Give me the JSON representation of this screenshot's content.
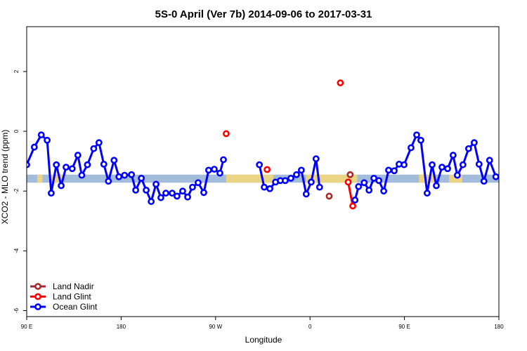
{
  "chart_data": {
    "type": "line",
    "title": "5S-0 April (Ver 7b)   2014-09-06 to 2017-03-31",
    "xlabel": "Longitude",
    "ylabel": "XCO2 - MLO trend (ppm)",
    "xlim": [
      0,
      360
    ],
    "ylim": [
      -6.2,
      3.5
    ],
    "x_tick_labels": [
      {
        "x": 0,
        "label": "90 E"
      },
      {
        "x": 72,
        "label": "180"
      },
      {
        "x": 144,
        "label": "90 W"
      },
      {
        "x": 216,
        "label": "0"
      },
      {
        "x": 288,
        "label": "90 E"
      },
      {
        "x": 360,
        "label": "180"
      }
    ],
    "y_ticks": [
      2,
      0,
      -2,
      -4,
      -6
    ],
    "band": {
      "y_low": -1.72,
      "y_high": -1.45,
      "ocean_color": "#a4bcdc",
      "land_color": "#f2d77a"
    },
    "series": [
      {
        "name": "Land Nadir",
        "color": "#a52a2a",
        "segments": [
          [
            [
              246.6,
              -1.45
            ]
          ],
          [
            [
              230.6,
              -2.17
            ]
          ]
        ]
      },
      {
        "name": "Land Glint",
        "color": "#ff0000",
        "segments": [
          [
            [
              152.1,
              -0.08
            ]
          ],
          [
            [
              183.3,
              -1.28
            ]
          ],
          [
            [
              239.1,
              1.62
            ]
          ],
          [
            [
              245.1,
              -1.7
            ],
            [
              248.6,
              -2.5
            ]
          ]
        ]
      },
      {
        "name": "Ocean Glint",
        "color": "#0000ff",
        "segments": [
          [
            [
              0,
              -1.12
            ],
            [
              5.8,
              -0.53
            ],
            [
              11.1,
              -0.12
            ],
            [
              15.6,
              -0.3
            ],
            [
              18.7,
              -2.07
            ],
            [
              22.6,
              -1.12
            ],
            [
              26.3,
              -1.82
            ],
            [
              30.0,
              -1.2
            ],
            [
              34.7,
              -1.25
            ],
            [
              39.0,
              -0.8
            ],
            [
              42.0,
              -1.47
            ],
            [
              46.3,
              -1.12
            ],
            [
              51.1,
              -0.58
            ],
            [
              55.1,
              -0.38
            ],
            [
              58.8,
              -1.1
            ],
            [
              62.3,
              -1.67
            ],
            [
              66.6,
              -0.97
            ],
            [
              70.3,
              -1.52
            ],
            [
              74.6,
              -1.47
            ],
            [
              79.9,
              -1.45
            ],
            [
              83.1,
              -1.97
            ],
            [
              87.4,
              -1.57
            ],
            [
              91.1,
              -1.97
            ],
            [
              94.9,
              -2.35
            ],
            [
              98.6,
              -1.77
            ],
            [
              102.3,
              -2.22
            ],
            [
              106.1,
              -2.07
            ],
            [
              110.9,
              -2.07
            ],
            [
              114.6,
              -2.17
            ],
            [
              118.9,
              -2.0
            ],
            [
              122.7,
              -2.2
            ],
            [
              126.4,
              -1.87
            ],
            [
              130.7,
              -1.72
            ],
            [
              135.0,
              -2.05
            ],
            [
              138.7,
              -1.3
            ],
            [
              143.0,
              -1.27
            ],
            [
              147.3,
              -1.4
            ],
            [
              150.0,
              -0.95
            ]
          ],
          [
            [
              177.4,
              -1.12
            ],
            [
              181.1,
              -1.87
            ],
            [
              185.4,
              -1.92
            ],
            [
              189.7,
              -1.7
            ],
            [
              193.4,
              -1.65
            ],
            [
              197.1,
              -1.65
            ],
            [
              201.4,
              -1.57
            ],
            [
              205.7,
              -1.45
            ],
            [
              209.4,
              -1.3
            ],
            [
              213.1,
              -2.1
            ],
            [
              216.9,
              -1.7
            ],
            [
              220.6,
              -0.92
            ],
            [
              223.3,
              -1.87
            ]
          ],
          [
            [
              250.3,
              -2.3
            ],
            [
              253.0,
              -1.85
            ],
            [
              257.3,
              -1.72
            ],
            [
              261.0,
              -1.97
            ],
            [
              264.7,
              -1.57
            ],
            [
              268.5,
              -1.65
            ],
            [
              272.2,
              -2.0
            ],
            [
              275.9,
              -1.3
            ],
            [
              280.2,
              -1.32
            ],
            [
              283.9,
              -1.1
            ],
            [
              287.7,
              -1.12
            ],
            [
              293.0,
              -0.55
            ],
            [
              297.3,
              -0.12
            ],
            [
              300.5,
              -0.3
            ],
            [
              305.3,
              -2.07
            ],
            [
              309.1,
              -1.12
            ],
            [
              312.3,
              -1.82
            ],
            [
              316.6,
              -1.2
            ],
            [
              320.9,
              -1.25
            ],
            [
              325.1,
              -0.8
            ],
            [
              328.3,
              -1.47
            ],
            [
              332.6,
              -1.12
            ],
            [
              336.9,
              -0.58
            ],
            [
              341.2,
              -0.38
            ],
            [
              344.9,
              -1.1
            ],
            [
              348.6,
              -1.67
            ],
            [
              352.9,
              -0.97
            ],
            [
              357.7,
              -1.52
            ]
          ]
        ]
      }
    ],
    "legend": {
      "placement": "bottom-left",
      "entries": [
        "Land Nadir",
        "Land Glint",
        "Ocean Glint"
      ]
    },
    "grid": false
  }
}
